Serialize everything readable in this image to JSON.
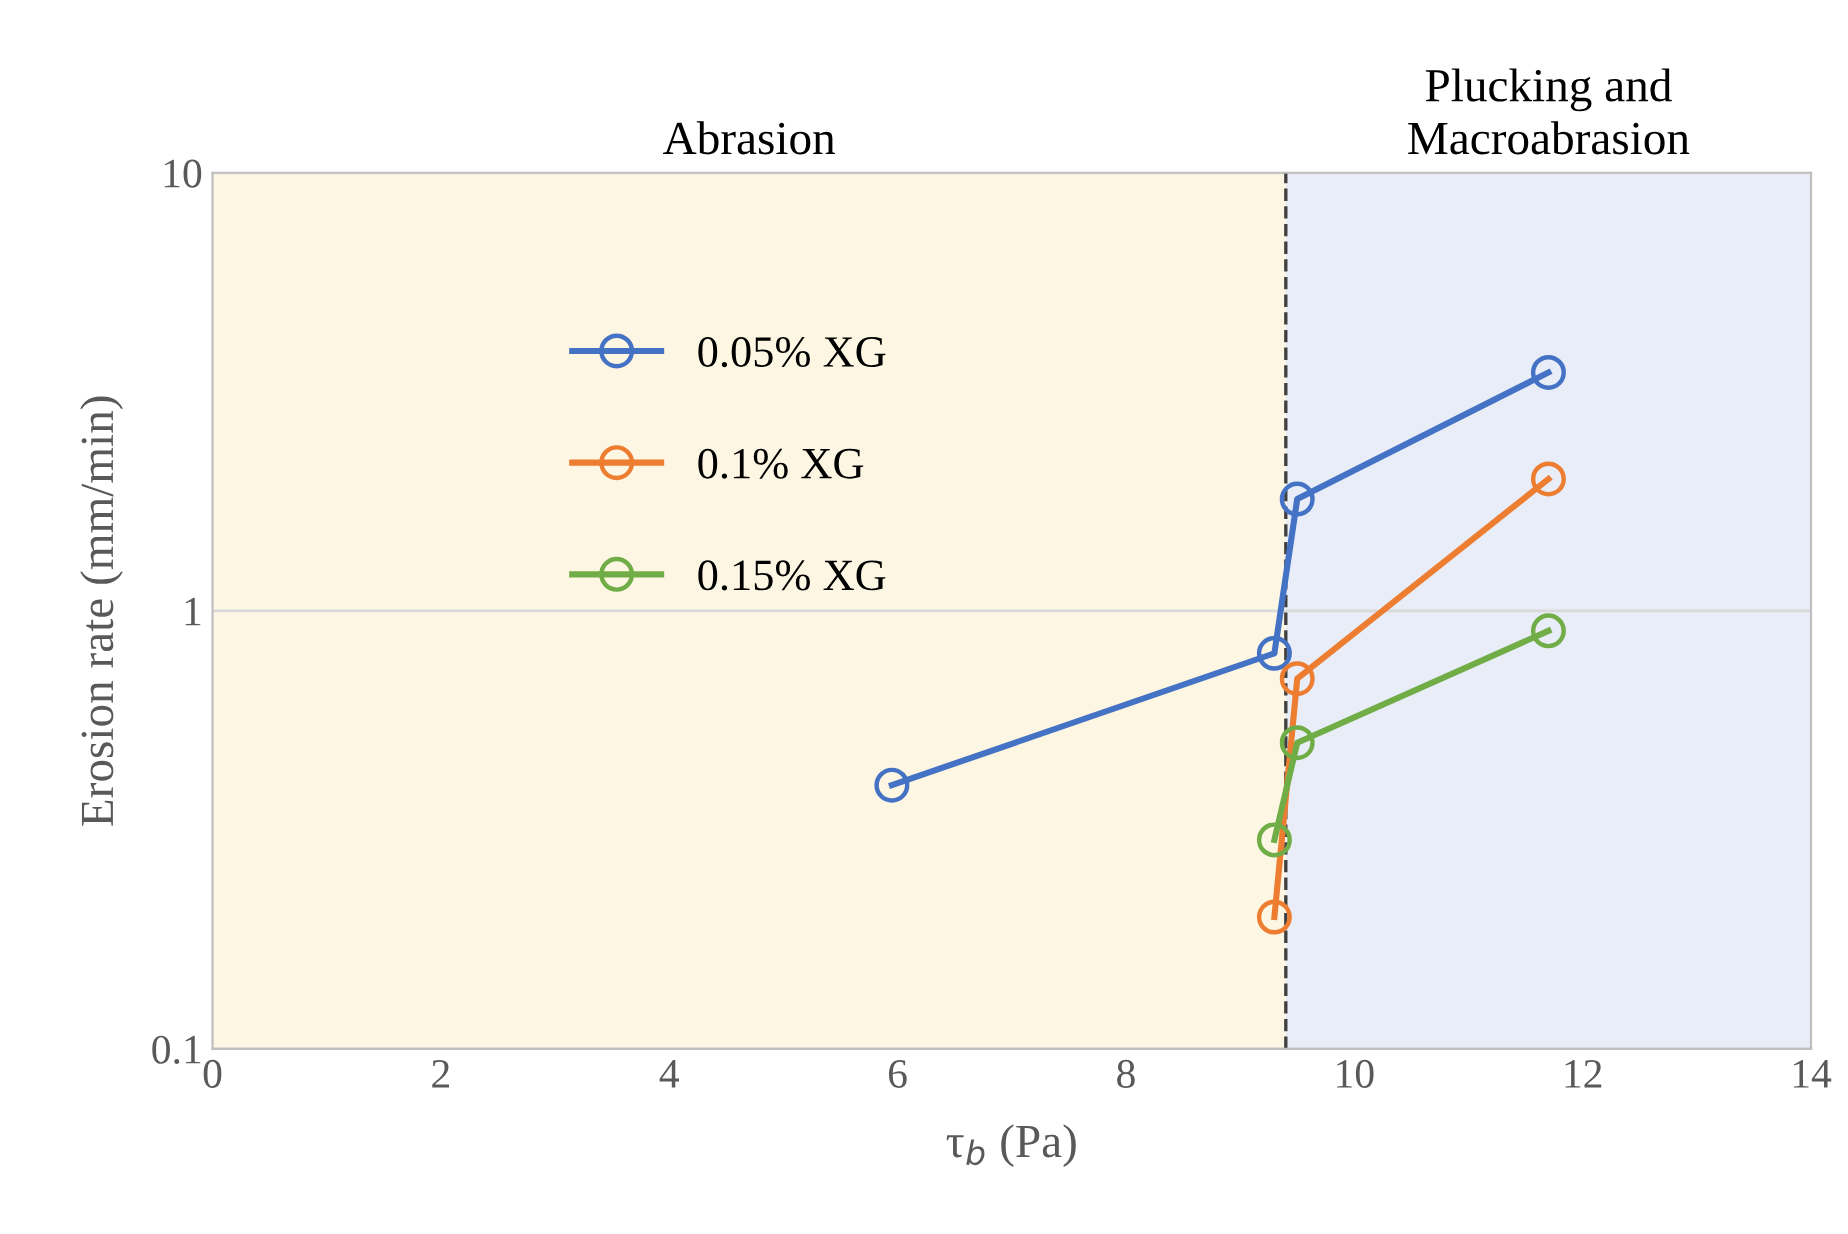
{
  "chart_data": {
    "type": "line",
    "xlabel": "τ$_{b}$ (Pa)",
    "ylabel": "Erosion rate (mm/min)",
    "series": [
      {
        "name": "0.05% XG",
        "color": "#4472c4",
        "x": [
          5.95,
          9.3,
          9.5,
          11.7
        ],
        "values": [
          0.4,
          0.8,
          1.8,
          3.5
        ]
      },
      {
        "name": "0.1% XG",
        "color": "#ed7d31",
        "x": [
          9.3,
          9.5,
          11.7
        ],
        "values": [
          0.2,
          0.7,
          2.0
        ]
      },
      {
        "name": "0.15% XG",
        "color": "#70ad47",
        "x": [
          9.3,
          9.5,
          11.7
        ],
        "values": [
          0.3,
          0.5,
          0.9
        ]
      }
    ],
    "xlim": [
      0,
      14
    ],
    "xticks": [
      0,
      2,
      4,
      6,
      8,
      10,
      12,
      14
    ],
    "ylim": [
      0.1,
      10
    ],
    "yticks": [
      0.1,
      1,
      10
    ],
    "log": "y",
    "bands": [
      {
        "axis": "x",
        "from": 0,
        "to": 9.4,
        "label": "Abrasion",
        "color": "#fdf6e3"
      },
      {
        "axis": "x",
        "from": 9.4,
        "to": 14,
        "label": "Plucking and\nMacroabrasion",
        "color": "#e9edf7"
      }
    ],
    "ref_lines": [
      {
        "axis": "x",
        "value": 9.4,
        "color": "#404040",
        "line_style": "dashed"
      }
    ],
    "grid": "y",
    "legend": "top left",
    "marker": "circle",
    "line_style": "solid"
  }
}
